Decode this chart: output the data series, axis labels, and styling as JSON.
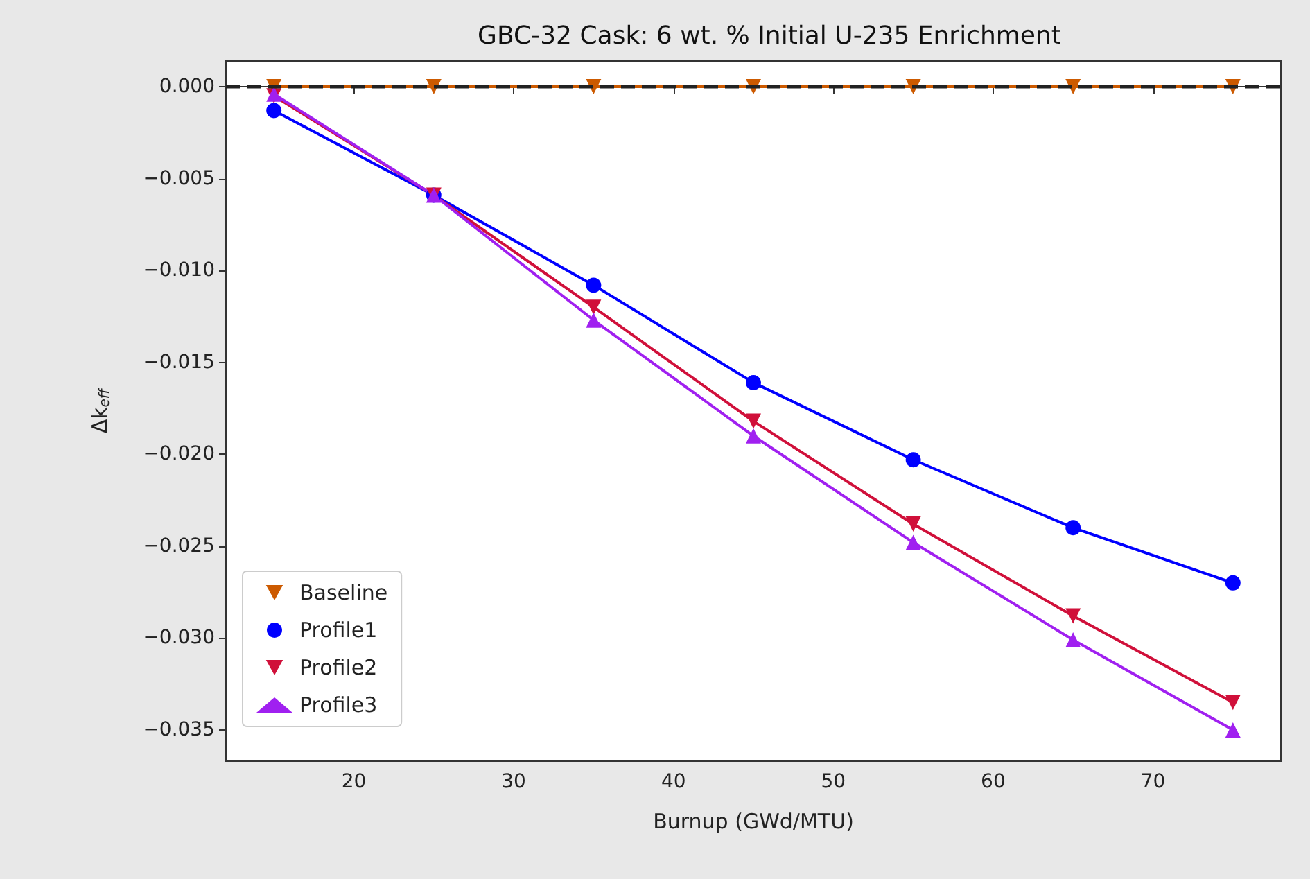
{
  "chart_data": {
    "type": "line",
    "title": "GBC-32 Cask: 6 wt. % Initial U-235 Enrichment",
    "xlabel": "Burnup (GWd/MTU)",
    "ylabel": "Δk$_{eff}$",
    "x": [
      15,
      25,
      35,
      45,
      55,
      65,
      75
    ],
    "series": [
      {
        "name": "Baseline",
        "color": "#cc5a00",
        "marker": "triangle-down",
        "values": [
          0,
          0,
          0,
          0,
          0,
          0,
          0
        ]
      },
      {
        "name": "Profile1",
        "color": "#0000ff",
        "marker": "circle",
        "values": [
          -0.0013,
          -0.0059,
          -0.0108,
          -0.0161,
          -0.0203,
          -0.024,
          -0.027
        ]
      },
      {
        "name": "Profile2",
        "color": "#d0103a",
        "marker": "triangle-down",
        "values": [
          -0.0005,
          -0.0059,
          -0.012,
          -0.0182,
          -0.0238,
          -0.0288,
          -0.0335
        ]
      },
      {
        "name": "Profile3",
        "color": "#a020f0",
        "marker": "triangle",
        "values": [
          -0.0004,
          -0.0059,
          -0.0127,
          -0.019,
          -0.0248,
          -0.0301,
          -0.035
        ]
      }
    ],
    "xlim": [
      12,
      78
    ],
    "xticks": [
      20,
      30,
      40,
      50,
      60,
      70
    ],
    "ylim": [
      -0.0367,
      0.0014
    ],
    "yticks": [
      {
        "value": 0,
        "label": "0.000"
      },
      {
        "value": -0.005,
        "label": "−0.005"
      },
      {
        "value": -0.01,
        "label": "−0.010"
      },
      {
        "value": -0.015,
        "label": "−0.015"
      },
      {
        "value": -0.02,
        "label": "−0.020"
      },
      {
        "value": -0.025,
        "label": "−0.025"
      },
      {
        "value": -0.03,
        "label": "−0.030"
      },
      {
        "value": -0.035,
        "label": "−0.035"
      }
    ],
    "ref_lines": [
      {
        "axis": "y",
        "value": 0,
        "color": "#222222",
        "line_style": "dashed"
      }
    ],
    "grid": false,
    "legend": "bottom left",
    "line_style": "solid"
  }
}
